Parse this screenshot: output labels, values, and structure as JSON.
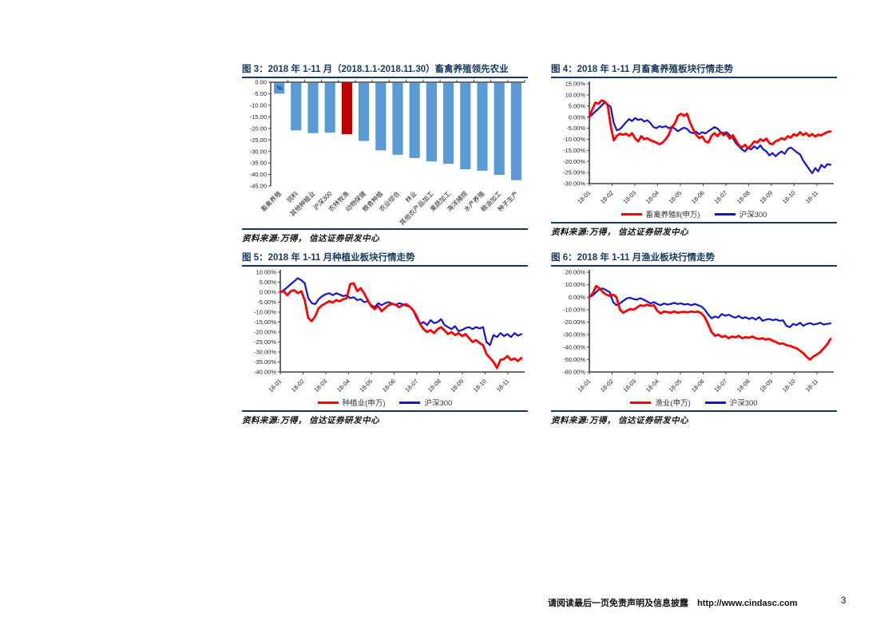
{
  "colors": {
    "title_navy": "#17375E",
    "bar_blue": "#5B9BD5",
    "bar_red": "#C00000",
    "line_red": "#FF0000",
    "line_blue": "#1414CC",
    "axis": "#404040"
  },
  "footer": {
    "disclaimer": "请阅读最后一页免责声明及信息披露",
    "url": "http://www.cindasc.com",
    "page_number": "3"
  },
  "chart_data": [
    {
      "type": "bar",
      "title": "图 3：2018 年 1-11 月（2018.1.1-2018.11.30）畜禽养殖领先农业",
      "source": "资料来源:万得， 信达证券研发中心",
      "unit_label": "%",
      "categories": [
        "畜禽养殖",
        "饲料",
        "其他种植业",
        "沪深300",
        "农林牧渔",
        "动物保健",
        "粮食种植",
        "农业综合",
        "林业",
        "其他农产品加工",
        "果蔬加工",
        "海洋捕捞",
        "水产养殖",
        "粮油加工",
        "种子生产"
      ],
      "values": [
        -4.8,
        -20.7,
        -21.9,
        -21.7,
        -22.4,
        -25.3,
        -29.4,
        -31.3,
        -32.7,
        -34.2,
        -35.2,
        -37.6,
        -38.2,
        -40.0,
        -42.3
      ],
      "highlight_index": 4,
      "ylim": [
        -45,
        0
      ],
      "ytick_values": [
        0,
        -5,
        -10,
        -15,
        -20,
        -25,
        -30,
        -35,
        -40,
        -45
      ],
      "ytick_labels": [
        "0.00",
        "-5.00",
        "-10.00",
        "-15.00",
        "-20.00",
        "-25.00",
        "-30.00",
        "-35.00",
        "-40.00",
        "-45.00"
      ],
      "grid": false
    },
    {
      "type": "line",
      "title": "图 4：2018 年 1-11 月畜禽养殖板块行情走势",
      "source": "资料来源:万得， 信达证券研发中心",
      "x_categories": [
        "18-01",
        "18-02",
        "18-03",
        "18-04",
        "18-05",
        "18-06",
        "18-07",
        "18-08",
        "18-09",
        "18-10",
        "18-11"
      ],
      "x_span": 10.6,
      "ylim": [
        -30,
        15
      ],
      "ytick_values": [
        15,
        10,
        5,
        0,
        -5,
        -10,
        -15,
        -20,
        -25,
        -30
      ],
      "ytick_labels": [
        "15.00%",
        "10.00%",
        "5.00%",
        "0.00%",
        "-5.00%",
        "-10.00%",
        "-15.00%",
        "-20.00%",
        "-25.00%",
        "-30.00%"
      ],
      "grid": false,
      "legend_position": "bottom",
      "series": [
        {
          "name": "畜禽养殖Ⅱ(申万)",
          "color": "#FF0000",
          "values": [
            0,
            3.5,
            6.5,
            6,
            7.5,
            7,
            5.5,
            -4,
            -10.5,
            -8.5,
            -7.5,
            -8,
            -7.5,
            -8.5,
            -7.3,
            -9.6,
            -11,
            -8.6,
            -10,
            -9.5,
            -10.5,
            -11,
            -11.5,
            -12.3,
            -11.5,
            -10,
            -8,
            -4.5,
            -3,
            0.5,
            1.5,
            0.5,
            1.5,
            -2.5,
            -5.5,
            -8,
            -9.5,
            -8.7,
            -11,
            -11.5,
            -8.5,
            -7.3,
            -8.6,
            -6.8,
            -8.2,
            -7.5,
            -9.7,
            -8.2,
            -10.5,
            -12.8,
            -13.7,
            -12.5,
            -14.2,
            -12.8,
            -11,
            -11.5,
            -10,
            -10.8,
            -9.7,
            -11.8,
            -12.3,
            -10.9,
            -10.4,
            -9.5,
            -10.2,
            -8.6,
            -9.3,
            -7.7,
            -8.4,
            -6.8,
            -8.1,
            -7.2,
            -8.6,
            -7.6,
            -8.8,
            -7.9,
            -8.3,
            -7.4,
            -6.7,
            -6.5
          ]
        },
        {
          "name": "沪深300",
          "color": "#1414CC",
          "values": [
            0,
            1.2,
            2.5,
            3.8,
            5.2,
            6.5,
            5.8,
            4.5,
            -2.7,
            -6,
            -5.5,
            -4,
            -2.3,
            -0.9,
            -1.8,
            -0.4,
            -1.3,
            -0.9,
            -2,
            -1.4,
            -2.7,
            -4.5,
            -5,
            -4.1,
            -4.6,
            -4.1,
            -5,
            -4.4,
            -5.2,
            -6.4,
            -5.5,
            -4.8,
            -5.3,
            -6.8,
            -7.3,
            -6.6,
            -7.7,
            -6.8,
            -7.4,
            -6.4,
            -5.5,
            -4.5,
            -5.2,
            -6.8,
            -7.3,
            -6.8,
            -8.2,
            -9.5,
            -11.8,
            -13.2,
            -14.6,
            -15.5,
            -13.7,
            -14.6,
            -13.2,
            -14.3,
            -12.8,
            -14.6,
            -15.5,
            -17.3,
            -16.2,
            -17.7,
            -16.4,
            -15.5,
            -16.6,
            -14.4,
            -13.7,
            -14.8,
            -15.9,
            -16.8,
            -19.5,
            -21.5,
            -23.5,
            -25.3,
            -23,
            -24.5,
            -21.5,
            -22.8,
            -21.2,
            -21.5
          ]
        }
      ]
    },
    {
      "type": "line",
      "title": "图 5：2018 年 1-11 月种植业板块行情走势",
      "source": "资料来源:万得， 信达证券研发中心",
      "x_categories": [
        "18-01",
        "18-02",
        "18-03",
        "18-04",
        "18-05",
        "18-06",
        "18-07",
        "18-08",
        "18-09",
        "18-10",
        "18-11"
      ],
      "x_span": 10.6,
      "ylim": [
        -40,
        10
      ],
      "ytick_values": [
        10,
        5,
        0,
        -5,
        -10,
        -15,
        -20,
        -25,
        -30,
        -35,
        -40
      ],
      "ytick_labels": [
        "10.00%",
        "5.00%",
        "0.00%",
        "-5.00%",
        "-10.00%",
        "-15.00%",
        "-20.00%",
        "-25.00%",
        "-30.00%",
        "-35.00%",
        "-40.00%"
      ],
      "grid": false,
      "legend_position": "bottom",
      "series": [
        {
          "name": "种植业(申万)",
          "color": "#FF0000",
          "values": [
            0,
            0.5,
            -1.5,
            0.5,
            1,
            -0.5,
            0.5,
            -4,
            -13,
            -14.5,
            -12,
            -8,
            -6.5,
            -5.5,
            -4.5,
            -5.2,
            -4,
            -4.6,
            -3.5,
            -3,
            4,
            4.5,
            0.5,
            2,
            -0.5,
            -4,
            -7,
            -8.5,
            -7,
            -9.5,
            -8,
            -6.5,
            -5.8,
            -6.3,
            -7.5,
            -6.5,
            -6,
            -7.2,
            -9,
            -12,
            -16,
            -18.5,
            -20,
            -19,
            -20.5,
            -18.5,
            -17.5,
            -19.2,
            -21,
            -20,
            -21.5,
            -20.5,
            -22,
            -21,
            -23,
            -25,
            -24,
            -25.5,
            -26.5,
            -31,
            -33,
            -35,
            -38,
            -34,
            -33.5,
            -32,
            -34,
            -33.2,
            -34.5,
            -33
          ]
        },
        {
          "name": "沪深300",
          "color": "#1414CC",
          "values": [
            0,
            1,
            2.5,
            4,
            5.5,
            7,
            6,
            4.5,
            -3,
            -5.5,
            -6,
            -3.5,
            -2,
            -1,
            -0.5,
            -1.5,
            -0.5,
            -1.2,
            -2,
            -1.5,
            -3,
            -2.5,
            -4,
            -3.5,
            -5,
            -4.5,
            -6.5,
            -7.5,
            -5.5,
            -6.5,
            -5.5,
            -5,
            -5.8,
            -6.5,
            -5.5,
            -6,
            -6.8,
            -7.2,
            -9,
            -13,
            -16,
            -15,
            -16.5,
            -14,
            -15.5,
            -15,
            -13.5,
            -16.5,
            -17.5,
            -18.5,
            -17,
            -19.5,
            -19,
            -18,
            -17.5,
            -18.5,
            -17.5,
            -18.2,
            -17.5,
            -25,
            -26.5,
            -21.5,
            -22.5,
            -20.5,
            -22,
            -21,
            -22.5,
            -20.5,
            -21.8,
            -21
          ]
        }
      ]
    },
    {
      "type": "line",
      "title": "图 6：2018 年 1-11 月渔业板块行情走势",
      "source": "资料来源:万得， 信达证券研发中心",
      "x_categories": [
        "18-01",
        "18-02",
        "18-03",
        "18-04",
        "18-05",
        "18-06",
        "18-07",
        "18-08",
        "18-09",
        "18-10",
        "18-11"
      ],
      "x_span": 10.6,
      "ylim": [
        -60,
        20
      ],
      "ytick_values": [
        20,
        10,
        0,
        -10,
        -20,
        -30,
        -40,
        -50,
        -60
      ],
      "ytick_labels": [
        "20.00%",
        "10.00%",
        "0.00%",
        "-10.00%",
        "-20.00%",
        "-30.00%",
        "-40.00%",
        "-50.00%",
        "-60.00%"
      ],
      "grid": false,
      "legend_position": "bottom",
      "series": [
        {
          "name": "渔业(申万)",
          "color": "#FF0000",
          "values": [
            0,
            3,
            9,
            7,
            4,
            2,
            1,
            2,
            0,
            -10,
            -12.5,
            -11,
            -9.5,
            -10,
            -8.5,
            -6.5,
            -7,
            -6,
            -7,
            -6.5,
            -11,
            -13,
            -11.5,
            -12,
            -12.5,
            -11.5,
            -12.5,
            -12,
            -11.8,
            -12.2,
            -11.5,
            -12,
            -11.6,
            -13,
            -16,
            -22,
            -28,
            -31,
            -30,
            -32,
            -31,
            -33,
            -31.5,
            -32.2,
            -31,
            -33,
            -32,
            -32.6,
            -31.5,
            -33,
            -33.5,
            -33,
            -34,
            -33.5,
            -35,
            -36,
            -37.5,
            -37,
            -38.5,
            -39,
            -40,
            -41,
            -43,
            -45,
            -48,
            -50,
            -47.5,
            -46,
            -44,
            -41,
            -38,
            -33.5
          ]
        },
        {
          "name": "沪深300",
          "color": "#1414CC",
          "values": [
            0,
            1.5,
            4,
            6.5,
            7,
            5.5,
            4,
            -4,
            -6.5,
            -5,
            -3,
            -1,
            -0.5,
            -1.5,
            -2,
            -0.8,
            -2,
            -3.5,
            -5,
            -4,
            -5.5,
            -6.5,
            -5,
            -6,
            -5.5,
            -4.5,
            -5.5,
            -5,
            -6,
            -5.5,
            -6.5,
            -5.5,
            -6.5,
            -7.5,
            -10,
            -14,
            -17,
            -15.5,
            -16.5,
            -13.5,
            -15,
            -14,
            -15.5,
            -16.5,
            -15,
            -17,
            -16,
            -17.5,
            -16.5,
            -18,
            -16,
            -19,
            -18,
            -17.5,
            -18.5,
            -17.8,
            -19,
            -18.5,
            -23,
            -24,
            -21.5,
            -22.5,
            -20.5,
            -23,
            -21.5,
            -20.8,
            -22,
            -21.5,
            -20.5,
            -22,
            -21.5,
            -21
          ]
        }
      ]
    }
  ]
}
